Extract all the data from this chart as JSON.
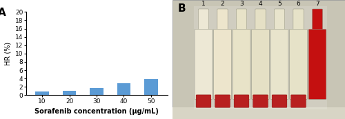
{
  "categories": [
    10,
    20,
    30,
    40,
    50
  ],
  "values": [
    0.9,
    1.1,
    1.8,
    2.9,
    3.8
  ],
  "bar_color": "#5B9BD5",
  "xlabel": "Sorafenib concentration (μg/mL)",
  "ylabel": "HR (%)",
  "ylim": [
    0,
    20
  ],
  "yticks": [
    0,
    2,
    4,
    6,
    8,
    10,
    12,
    14,
    16,
    18,
    20
  ],
  "label_A": "A",
  "label_B": "B",
  "axis_fontsize": 7,
  "tick_fontsize": 6.5,
  "xlabel_fontsize": 7,
  "photo_bg": "#c8c5b5",
  "photo_shelf_color": "#e0ddd0",
  "tube_body_color": "#ede8d5",
  "tube_body_color_7": "#c41010",
  "tube_bottom_red": "#b81515",
  "tube_sep_color": "#ffffff",
  "tube_numbers": [
    "1",
    "2",
    "3",
    "4",
    "5",
    "6",
    "7"
  ]
}
